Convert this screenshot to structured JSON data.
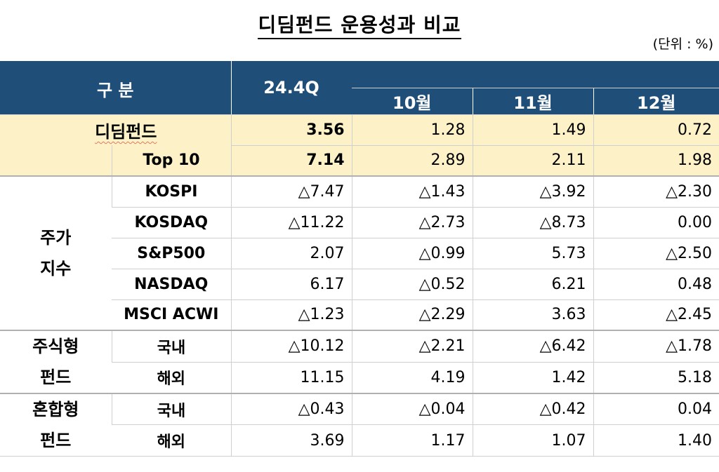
{
  "title": "디딤펀드 운용성과 비교",
  "unit": "(단위 : %)",
  "header": {
    "gubun": "구 분",
    "quarter": "24.4Q",
    "months": [
      "10월",
      "11월",
      "12월"
    ]
  },
  "rows": {
    "didim": {
      "label": "디딤펀드",
      "q": "3.56",
      "m10": "1.28",
      "m11": "1.49",
      "m12": "0.72"
    },
    "top10": {
      "label": "Top 10",
      "q": "7.14",
      "m10": "2.89",
      "m11": "2.11",
      "m12": "1.98"
    }
  },
  "stock_index": {
    "group": [
      "주가",
      "지수"
    ],
    "items": [
      {
        "label": "KOSPI",
        "q": "△7.47",
        "m10": "△1.43",
        "m11": "△3.92",
        "m12": "△2.30"
      },
      {
        "label": "KOSDAQ",
        "q": "△11.22",
        "m10": "△2.73",
        "m11": "△8.73",
        "m12": "0.00"
      },
      {
        "label": "S&P500",
        "q": "2.07",
        "m10": "△0.99",
        "m11": "5.73",
        "m12": "△2.50"
      },
      {
        "label": "NASDAQ",
        "q": "6.17",
        "m10": "△0.52",
        "m11": "6.21",
        "m12": "0.48"
      },
      {
        "label": "MSCI ACWI",
        "q": "△1.23",
        "m10": "△2.29",
        "m11": "3.63",
        "m12": "△2.45"
      }
    ]
  },
  "equity_fund": {
    "group": [
      "주식형",
      "펀드"
    ],
    "items": [
      {
        "label": "국내",
        "q": "△10.12",
        "m10": "△2.21",
        "m11": "△6.42",
        "m12": "△1.78"
      },
      {
        "label": "해외",
        "q": "11.15",
        "m10": "4.19",
        "m11": "1.42",
        "m12": "5.18"
      }
    ]
  },
  "mixed_fund": {
    "group": [
      "혼합형",
      "펀드"
    ],
    "items": [
      {
        "label": "국내",
        "q": "△0.43",
        "m10": "△0.04",
        "m11": "△0.42",
        "m12": "0.04"
      },
      {
        "label": "해외",
        "q": "3.69",
        "m10": "1.17",
        "m11": "1.07",
        "m12": "1.40"
      }
    ]
  },
  "colors": {
    "header_bg": "#1f4e79",
    "highlight_bg": "#fdf1c7"
  }
}
